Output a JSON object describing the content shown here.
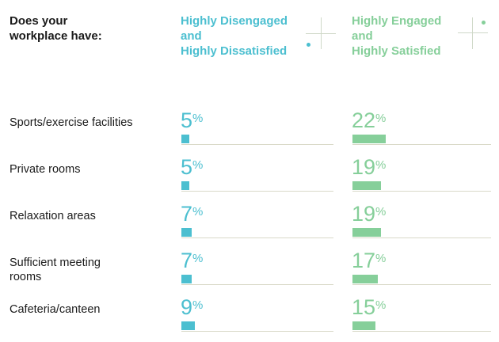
{
  "chart_data": {
    "type": "bar",
    "title": "Does your workplace have:",
    "categories": [
      "Sports/exercise facilities",
      "Private rooms",
      "Relaxation areas",
      "Sufficient meeting rooms",
      "Cafeteria/canteen"
    ],
    "series": [
      {
        "name": "Highly Disengaged and Highly Dissatisfied",
        "values": [
          5,
          5,
          7,
          7,
          9
        ],
        "color": "#4cbfd0"
      },
      {
        "name": "Highly Engaged and Highly Satisfied",
        "values": [
          22,
          19,
          19,
          17,
          15
        ],
        "color": "#86cf9a"
      }
    ],
    "unit": "%"
  },
  "header": {
    "question_lines": [
      "Does your",
      "workplace have:"
    ],
    "group_a_lines": [
      "Highly Disengaged",
      "and",
      "Highly Dissatisfied"
    ],
    "group_b_lines": [
      "Highly Engaged",
      "and",
      "Highly Satisfied"
    ]
  },
  "rows": [
    {
      "label_lines": [
        "Sports/exercise facilities"
      ]
    },
    {
      "label_lines": [
        "Private rooms"
      ]
    },
    {
      "label_lines": [
        "Relaxation areas"
      ]
    },
    {
      "label_lines": [
        "Sufficient meeting",
        "rooms"
      ]
    },
    {
      "label_lines": [
        "Cafeteria/canteen"
      ]
    }
  ],
  "colors": {
    "accent_blue": "#4cbfd0",
    "accent_green": "#86cf9a",
    "divider": "#d9d9c8"
  }
}
